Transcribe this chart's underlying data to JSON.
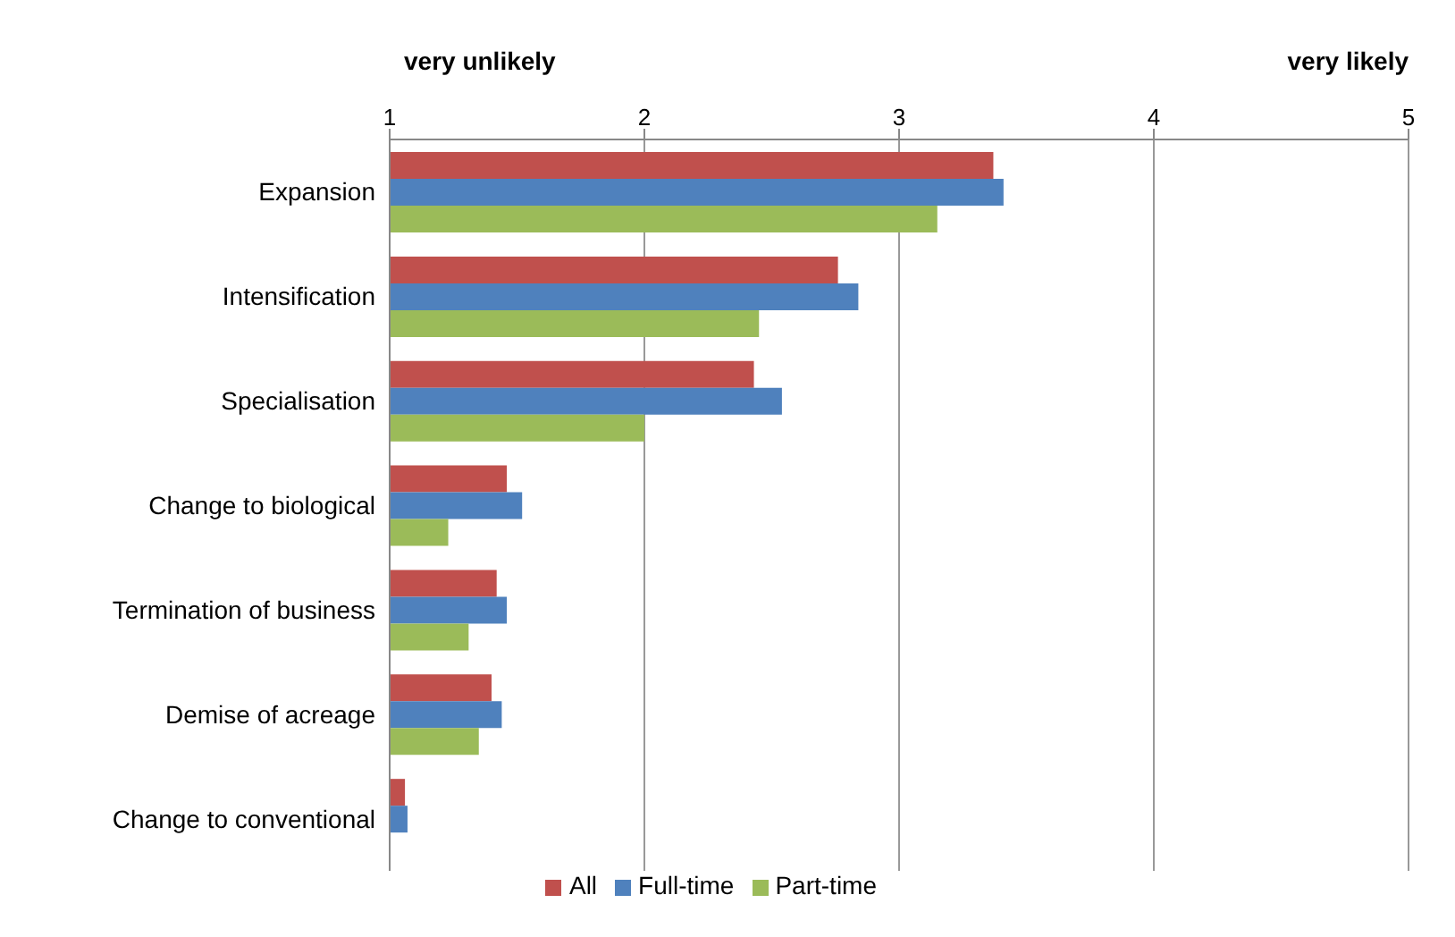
{
  "chart_data": {
    "type": "bar",
    "orientation": "horizontal",
    "categories": [
      "Expansion",
      "Intensification",
      "Specialisation",
      "Change to biological",
      "Termination of business",
      "Demise of acreage",
      "Change to conventional"
    ],
    "series": [
      {
        "name": "All",
        "color": "#c0504d",
        "values": [
          3.37,
          2.76,
          2.43,
          1.46,
          1.42,
          1.4,
          1.06
        ]
      },
      {
        "name": "Full-time",
        "color": "#4f81bd",
        "values": [
          3.41,
          2.84,
          2.54,
          1.52,
          1.46,
          1.44,
          1.07
        ]
      },
      {
        "name": "Part-time",
        "color": "#9bbb59",
        "values": [
          3.15,
          2.45,
          2.0,
          1.23,
          1.31,
          1.35,
          null
        ]
      }
    ],
    "xlim": [
      1,
      5
    ],
    "xticks": [
      1,
      2,
      3,
      4,
      5
    ],
    "grid": "x",
    "legend": "bottom",
    "annotations": [
      "very unlikely",
      "very likely"
    ]
  }
}
